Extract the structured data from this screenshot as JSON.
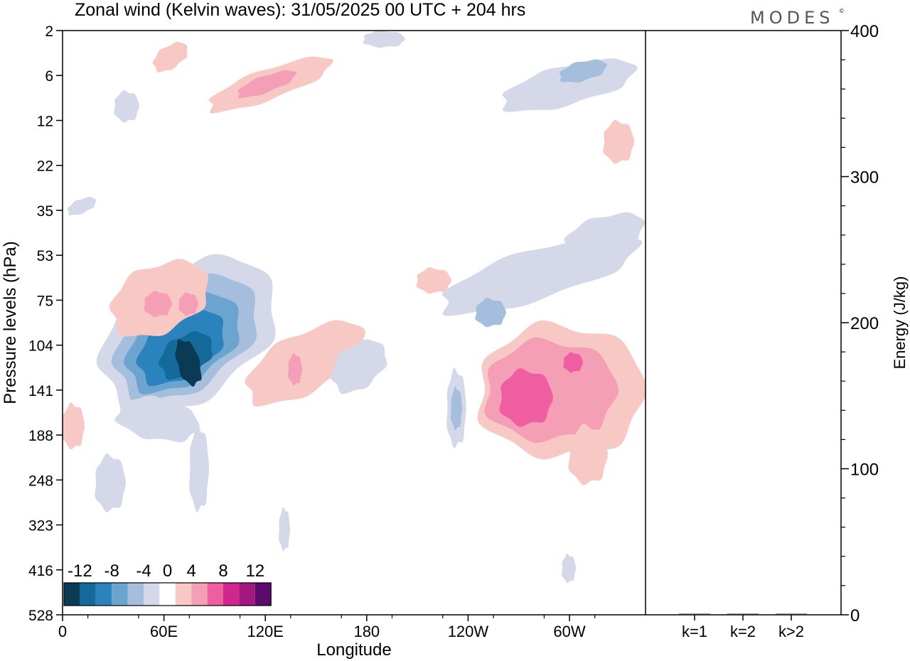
{
  "logo": "MODES",
  "chart_data": [
    {
      "type": "heatmap",
      "title": "Zonal wind (Kelvin waves):  31/05/2025  00 UTC  + 204 hrs",
      "xlabel": "Longitude",
      "ylabel": "Pressure levels (hPa)",
      "x_ticks": [
        "0",
        "60E",
        "120E",
        "180",
        "120W",
        "60W"
      ],
      "x_tick_values": [
        0,
        60,
        120,
        180,
        240,
        300
      ],
      "xlim": [
        0,
        345
      ],
      "y_ticks": [
        "2",
        "6",
        "12",
        "22",
        "35",
        "53",
        "75",
        "104",
        "141",
        "188",
        "248",
        "323",
        "416",
        "528"
      ],
      "y_scale": "log-pressure, top to bottom",
      "colorbar": {
        "tick_labels": [
          "-12",
          "-8",
          "-4",
          "0",
          "4",
          "8",
          "12"
        ],
        "bins": [
          -14,
          -12,
          -10,
          -8,
          -6,
          -4,
          -2,
          2,
          4,
          6,
          8,
          10,
          12,
          14
        ],
        "colors": [
          "#0b3a57",
          "#136a9b",
          "#2b83bd",
          "#6aa4cf",
          "#a6bedd",
          "#d4d8e8",
          "#ffffff",
          "#f8c9c4",
          "#f59fb6",
          "#ee5ea0",
          "#d0268e",
          "#a3177e",
          "#5b0a6e"
        ]
      },
      "features": [
        {
          "kind": "negative",
          "lon_center": 75,
          "level_hpa": 120,
          "peak": -12
        },
        {
          "kind": "negative",
          "lon_center": 95,
          "level_hpa": 90,
          "peak": -8
        },
        {
          "kind": "negative",
          "lon_center": 260,
          "level_hpa": 95,
          "peak": -4
        },
        {
          "kind": "negative",
          "lon_center": 315,
          "level_hpa": 6,
          "peak": -6
        },
        {
          "kind": "positive",
          "lon_center": 270,
          "level_hpa": 135,
          "peak": 8
        },
        {
          "kind": "positive",
          "lon_center": 305,
          "level_hpa": 120,
          "peak": 8
        },
        {
          "kind": "positive",
          "lon_center": 50,
          "level_hpa": 80,
          "peak": 4
        },
        {
          "kind": "positive",
          "lon_center": 130,
          "level_hpa": 130,
          "peak": 4
        },
        {
          "kind": "positive",
          "lon_center": 125,
          "level_hpa": 7,
          "peak": 6
        },
        {
          "kind": "positive",
          "lon_center": 65,
          "level_hpa": 4,
          "peak": 4
        }
      ]
    },
    {
      "type": "bar",
      "ylabel": "Energy (J/kg)",
      "categories": [
        "k=1",
        "k=2",
        "k>2"
      ],
      "values": [
        0.5,
        0.5,
        0.5
      ],
      "ylim": [
        0,
        400
      ],
      "y_ticks": [
        "0",
        "100",
        "200",
        "300",
        "400"
      ]
    }
  ]
}
